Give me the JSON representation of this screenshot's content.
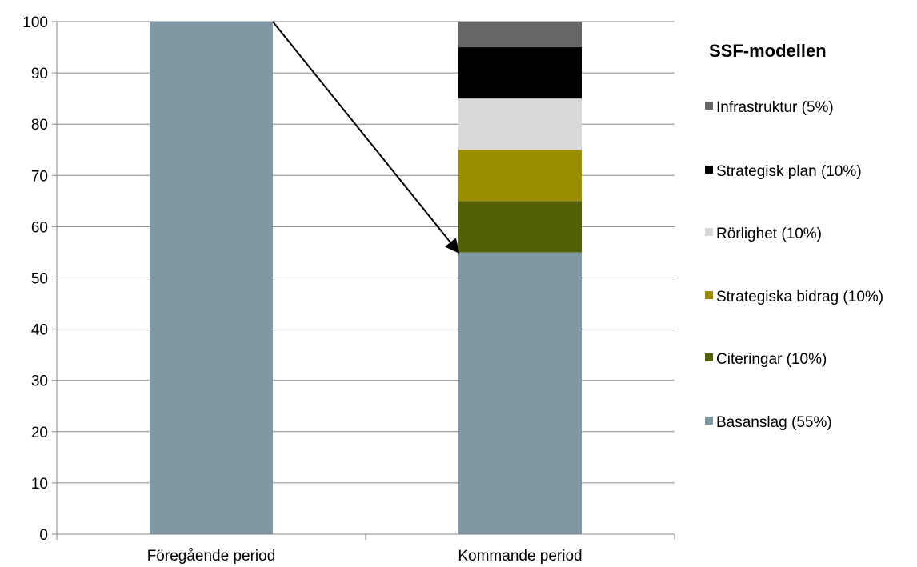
{
  "chart_data": {
    "type": "bar",
    "stacked": true,
    "categories": [
      "Föregående period",
      "Kommande period"
    ],
    "series": [
      {
        "name": "Basanslag (55%)",
        "values": [
          100,
          55
        ],
        "color": "#8097a4"
      },
      {
        "name": "Citeringar (10%)",
        "values": [
          0,
          10
        ],
        "color": "#536005"
      },
      {
        "name": "Strategiska bidrag (10%)",
        "values": [
          0,
          10
        ],
        "color": "#9c8d00"
      },
      {
        "name": "Rörlighet (10%)",
        "values": [
          0,
          10
        ],
        "color": "#d9d9d9"
      },
      {
        "name": "Strategisk plan (10%)",
        "values": [
          0,
          10
        ],
        "color": "#000000"
      },
      {
        "name": "Infrastruktur (5%)",
        "values": [
          0,
          5
        ],
        "color": "#666666"
      }
    ],
    "ylim": [
      0,
      100
    ],
    "yticks": [
      0,
      10,
      20,
      30,
      40,
      50,
      60,
      70,
      80,
      90,
      100
    ],
    "grid": true,
    "legend": {
      "title": "SSF-modellen",
      "placement": "right",
      "order": [
        "Infrastruktur (5%)",
        "Strategisk plan (10%)",
        "Rörlighet (10%)",
        "Strategiska bidrag (10%)",
        "Citeringar (10%)",
        "Basanslag (55%)"
      ]
    },
    "annotation": {
      "type": "arrow",
      "from": {
        "category": "Föregående period",
        "side": "right",
        "y": 100
      },
      "to": {
        "category": "Kommande period",
        "side": "left",
        "y": 55
      }
    }
  }
}
